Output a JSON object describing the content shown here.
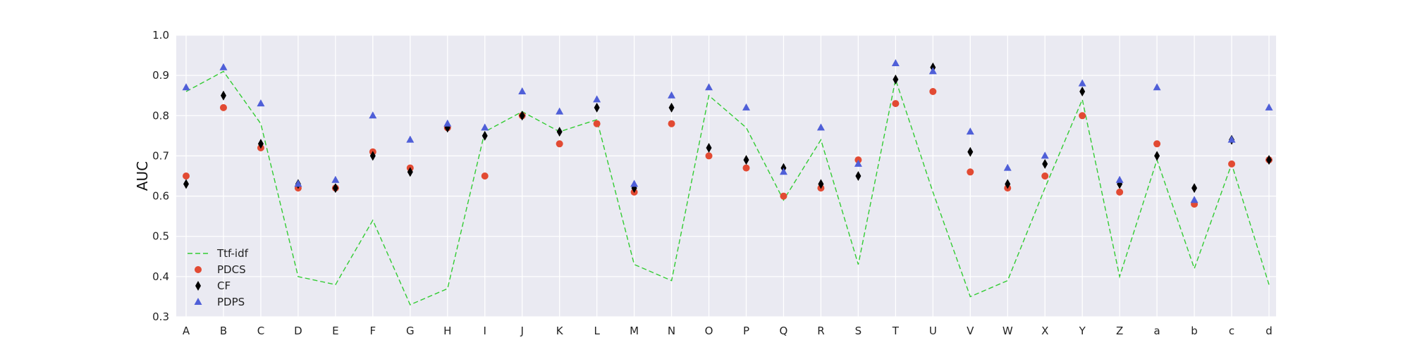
{
  "chart_data": {
    "type": "scatter",
    "title": "",
    "xlabel": "",
    "ylabel": "AUC",
    "ylim": [
      0.3,
      1.0
    ],
    "yticks": [
      "0.3",
      "0.4",
      "0.5",
      "0.6",
      "0.7",
      "0.8",
      "0.9",
      "1.0"
    ],
    "categories": [
      "A",
      "B",
      "C",
      "D",
      "E",
      "F",
      "G",
      "H",
      "I",
      "J",
      "K",
      "L",
      "M",
      "N",
      "O",
      "P",
      "Q",
      "R",
      "S",
      "T",
      "U",
      "V",
      "W",
      "X",
      "Y",
      "Z",
      "a",
      "b",
      "c",
      "d"
    ],
    "grid": true,
    "legend_position": "lower-left",
    "series": [
      {
        "name": "Ttf-idf",
        "style": "dashed-line",
        "color": "#33cc33",
        "values": [
          0.86,
          0.91,
          0.78,
          0.4,
          0.38,
          0.54,
          0.33,
          0.37,
          0.76,
          0.81,
          0.76,
          0.79,
          0.43,
          0.39,
          0.85,
          0.77,
          0.59,
          0.74,
          0.43,
          0.89,
          0.61,
          0.35,
          0.39,
          0.62,
          0.84,
          0.4,
          0.69,
          0.42,
          0.68,
          0.38
        ]
      },
      {
        "name": "PDCS",
        "style": "circle",
        "color": "#e24a33",
        "values": [
          0.65,
          0.82,
          0.72,
          0.62,
          0.62,
          0.71,
          0.67,
          0.77,
          0.65,
          0.8,
          0.73,
          0.78,
          0.61,
          0.78,
          0.7,
          0.67,
          0.6,
          0.62,
          0.69,
          0.83,
          0.86,
          0.66,
          0.62,
          0.65,
          0.8,
          0.61,
          0.73,
          0.58,
          0.68,
          0.69
        ]
      },
      {
        "name": "CF",
        "style": "diamond",
        "color": "#000000",
        "values": [
          0.63,
          0.85,
          0.73,
          0.63,
          0.62,
          0.7,
          0.66,
          0.77,
          0.75,
          0.8,
          0.76,
          0.82,
          0.62,
          0.82,
          0.72,
          0.69,
          0.67,
          0.63,
          0.65,
          0.89,
          0.92,
          0.71,
          0.63,
          0.68,
          0.86,
          0.63,
          0.7,
          0.62,
          0.74,
          0.69
        ]
      },
      {
        "name": "PDPS",
        "style": "triangle",
        "color": "#4f5fd8",
        "values": [
          0.87,
          0.92,
          0.83,
          0.63,
          0.64,
          0.8,
          0.74,
          0.78,
          0.77,
          0.86,
          0.81,
          0.84,
          0.63,
          0.85,
          0.87,
          0.82,
          0.66,
          0.77,
          0.68,
          0.93,
          0.91,
          0.76,
          0.67,
          0.7,
          0.88,
          0.64,
          0.87,
          0.59,
          0.74,
          0.82
        ]
      }
    ]
  }
}
